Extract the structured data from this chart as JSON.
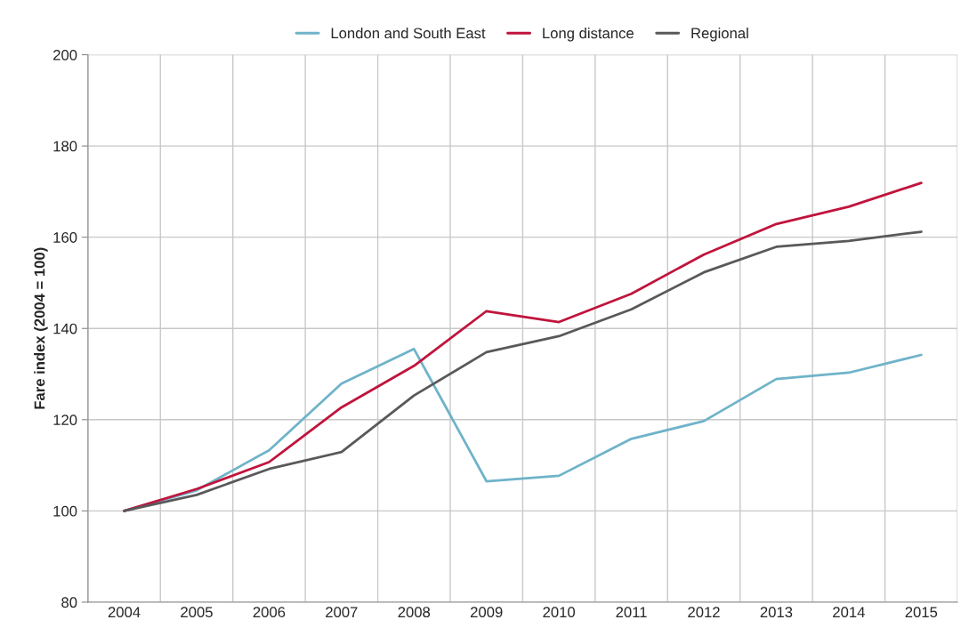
{
  "chart_data": {
    "type": "line",
    "ylabel": "Fare index (2004 = 100)",
    "categories": [
      "2004",
      "2005",
      "2006",
      "2007",
      "2008",
      "2009",
      "2010",
      "2011",
      "2012",
      "2013",
      "2014",
      "2015"
    ],
    "series": [
      {
        "name": "London and South East",
        "color": "#6fb3c9",
        "values": [
          100,
          104.5,
          113.3,
          127.9,
          135.5,
          106.5,
          107.7,
          115.8,
          119.7,
          128.9,
          130.3,
          134.2
        ]
      },
      {
        "name": "Long distance",
        "color": "#c0143c",
        "values": [
          100,
          104.8,
          110.7,
          122.7,
          131.8,
          143.8,
          141.4,
          147.6,
          156.2,
          162.9,
          166.7,
          171.9
        ]
      },
      {
        "name": "Regional",
        "color": "#59595b",
        "values": [
          100,
          103.5,
          109.2,
          112.9,
          125.3,
          134.8,
          138.3,
          144.2,
          152.3,
          157.9,
          159.2,
          161.2
        ]
      }
    ],
    "ylim": [
      80,
      200
    ],
    "yticks": [
      80,
      100,
      120,
      140,
      160,
      180,
      200
    ],
    "grid": true,
    "legend": "top",
    "marker": "none",
    "line_style": "solid"
  }
}
